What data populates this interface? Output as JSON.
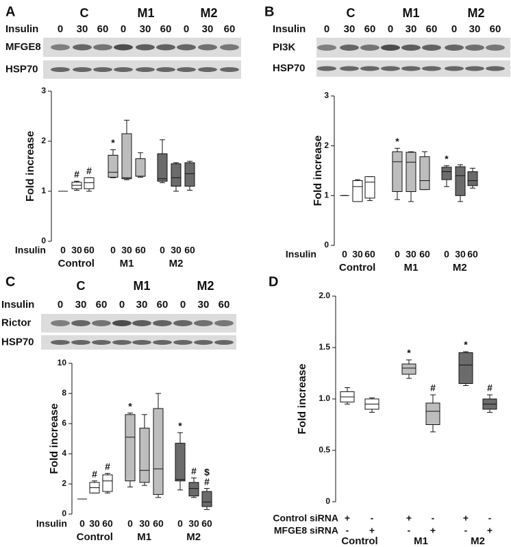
{
  "chart_data": [
    {
      "type": "box",
      "panel_label": "A",
      "ylabel": "Fold increase",
      "ylim": [
        0,
        3
      ],
      "yticks": [
        0,
        1,
        2,
        3
      ],
      "blot": {
        "groups": [
          "C",
          "M1",
          "M2"
        ],
        "dose_label": "Insulin",
        "doses": [
          "0",
          "30",
          "60",
          "0",
          "30",
          "60",
          "0",
          "30",
          "60"
        ],
        "bands": [
          "MFGE8",
          "HSP70"
        ]
      },
      "x_row_labels": [
        "Insulin"
      ],
      "series": [
        {
          "name": "Control",
          "color": "#ffffff",
          "x_labels": [
            [
              "0",
              "30",
              "60"
            ]
          ],
          "min": [
            1,
            1.02,
            1.0
          ],
          "q1": [
            1,
            1.05,
            1.05
          ],
          "median": [
            1,
            1.12,
            1.17
          ],
          "q3": [
            1,
            1.18,
            1.27
          ],
          "max": [
            1,
            1.2,
            1.27
          ],
          "annotations": [
            [],
            [
              "#"
            ],
            [
              "#"
            ]
          ]
        },
        {
          "name": "M1",
          "color": "#bdbdbd",
          "x_labels": [
            [
              "0",
              "30",
              "60"
            ]
          ],
          "min": [
            1.27,
            1.23,
            1.28
          ],
          "q1": [
            1.28,
            1.25,
            1.3
          ],
          "median": [
            1.38,
            1.27,
            1.3
          ],
          "q3": [
            1.72,
            2.15,
            1.65
          ],
          "max": [
            1.83,
            2.42,
            1.77
          ],
          "annotations": [
            [
              "*"
            ],
            [],
            []
          ]
        },
        {
          "name": "M2",
          "color": "#6b6b6b",
          "x_labels": [
            [
              "0",
              "30",
              "60"
            ]
          ],
          "min": [
            1.17,
            1.0,
            1.02
          ],
          "q1": [
            1.2,
            1.1,
            1.1
          ],
          "median": [
            1.25,
            1.27,
            1.35
          ],
          "q3": [
            1.75,
            1.55,
            1.57
          ],
          "max": [
            2.03,
            1.57,
            1.6
          ],
          "annotations": [
            [],
            [],
            []
          ]
        }
      ]
    },
    {
      "type": "box",
      "panel_label": "B",
      "ylabel": "Fold increase",
      "ylim": [
        0,
        3
      ],
      "yticks": [
        0,
        1,
        2,
        3
      ],
      "blot": {
        "groups": [
          "C",
          "M1",
          "M2"
        ],
        "dose_label": "Insulin",
        "doses": [
          "0",
          "30",
          "60",
          "0",
          "30",
          "60",
          "0",
          "30",
          "60"
        ],
        "bands": [
          "PI3K",
          "HSP70"
        ]
      },
      "x_row_labels": [
        "Insulin"
      ],
      "series": [
        {
          "name": "Control",
          "color": "#ffffff",
          "x_labels": [
            [
              "0",
              "30",
              "60"
            ]
          ],
          "min": [
            1,
            0.88,
            0.9
          ],
          "q1": [
            1,
            0.88,
            0.95
          ],
          "median": [
            1,
            1.18,
            1.27
          ],
          "q3": [
            1,
            1.3,
            1.38
          ],
          "max": [
            1,
            1.32,
            1.38
          ],
          "annotations": [
            [],
            [],
            []
          ]
        },
        {
          "name": "M1",
          "color": "#bdbdbd",
          "x_labels": [
            [
              "0",
              "30",
              "60"
            ]
          ],
          "min": [
            0.92,
            0.88,
            1.12
          ],
          "q1": [
            1.08,
            1.08,
            1.12
          ],
          "median": [
            1.68,
            1.67,
            1.3
          ],
          "q3": [
            1.88,
            1.87,
            1.78
          ],
          "max": [
            1.95,
            1.88,
            1.88
          ],
          "annotations": [
            [
              "*"
            ],
            [],
            []
          ]
        },
        {
          "name": "M2",
          "color": "#6b6b6b",
          "x_labels": [
            [
              "0",
              "30",
              "60"
            ]
          ],
          "min": [
            1.18,
            0.88,
            1.15
          ],
          "q1": [
            1.32,
            1.0,
            1.2
          ],
          "median": [
            1.48,
            1.4,
            1.3
          ],
          "q3": [
            1.57,
            1.58,
            1.48
          ],
          "max": [
            1.6,
            1.62,
            1.55
          ],
          "annotations": [
            [
              "*"
            ],
            [],
            []
          ]
        }
      ]
    },
    {
      "type": "box",
      "panel_label": "C",
      "ylabel": "Fold increase",
      "ylim": [
        0,
        10
      ],
      "yticks": [
        0,
        2,
        4,
        6,
        8,
        10
      ],
      "blot": {
        "groups": [
          "C",
          "M1",
          "M2"
        ],
        "dose_label": "Insulin",
        "doses": [
          "0",
          "30",
          "60",
          "0",
          "30",
          "60",
          "0",
          "30",
          "60"
        ],
        "bands": [
          "Rictor",
          "HSP70"
        ]
      },
      "x_row_labels": [
        "Insulin"
      ],
      "series": [
        {
          "name": "Control",
          "color": "#ffffff",
          "x_labels": [
            [
              "0",
              "30",
              "60"
            ]
          ],
          "min": [
            1,
            1.4,
            1.4
          ],
          "q1": [
            1,
            1.4,
            1.5
          ],
          "median": [
            1,
            1.75,
            2.2
          ],
          "q3": [
            1,
            2.1,
            2.6
          ],
          "max": [
            1,
            2.2,
            2.7
          ],
          "annotations": [
            [],
            [
              "#"
            ],
            [
              "#"
            ]
          ]
        },
        {
          "name": "M1",
          "color": "#bdbdbd",
          "x_labels": [
            [
              "0",
              "30",
              "60"
            ]
          ],
          "min": [
            1.8,
            1.9,
            1.1
          ],
          "q1": [
            2.2,
            2.1,
            1.3
          ],
          "median": [
            5.1,
            2.9,
            3.0
          ],
          "q3": [
            6.6,
            5.7,
            7.0
          ],
          "max": [
            6.7,
            6.6,
            8.0
          ],
          "annotations": [
            [
              "*"
            ],
            [],
            []
          ]
        },
        {
          "name": "M2",
          "color": "#6b6b6b",
          "x_labels": [
            [
              "0",
              "30",
              "60"
            ]
          ],
          "min": [
            1.6,
            1.1,
            0.3
          ],
          "q1": [
            2.2,
            1.2,
            0.5
          ],
          "median": [
            2.3,
            1.7,
            0.8
          ],
          "q3": [
            4.7,
            2.1,
            1.5
          ],
          "max": [
            5.4,
            2.4,
            1.7
          ],
          "annotations": [
            [
              "*"
            ],
            [
              "#"
            ],
            [
              "$",
              "#"
            ]
          ]
        }
      ]
    },
    {
      "type": "box",
      "panel_label": "D",
      "ylabel": "Fold increase",
      "ylim": [
        0,
        2
      ],
      "yticks": [
        0,
        0.5,
        {
          "value": 1,
          "label": "1.0"
        },
        1.5,
        {
          "value": 2,
          "label": "2.0"
        }
      ],
      "x_row_labels": [
        "Control siRNA",
        "MFGE8 siRNA"
      ],
      "series": [
        {
          "name": "Control",
          "color": "#ffffff",
          "x_labels": [
            [
              "+",
              "-"
            ],
            [
              "-",
              "+"
            ]
          ],
          "min": [
            0.95,
            0.87
          ],
          "q1": [
            0.97,
            0.9
          ],
          "median": [
            1.02,
            0.95
          ],
          "q3": [
            1.07,
            1.0
          ],
          "max": [
            1.11,
            1.01
          ],
          "annotations": [
            [],
            []
          ]
        },
        {
          "name": "M1",
          "color": "#bdbdbd",
          "x_labels": [
            [
              "+",
              "-"
            ],
            [
              "-",
              "+"
            ]
          ],
          "min": [
            1.2,
            0.68
          ],
          "q1": [
            1.24,
            0.75
          ],
          "median": [
            1.3,
            0.88
          ],
          "q3": [
            1.34,
            0.96
          ],
          "max": [
            1.38,
            1.04
          ],
          "annotations": [
            [
              "*"
            ],
            [
              "#"
            ]
          ]
        },
        {
          "name": "M2",
          "color": "#6b6b6b",
          "x_labels": [
            [
              "+",
              "-"
            ],
            [
              "-",
              "+"
            ]
          ],
          "min": [
            1.13,
            0.87
          ],
          "q1": [
            1.15,
            0.9
          ],
          "median": [
            1.33,
            0.95
          ],
          "q3": [
            1.45,
            1.0
          ],
          "max": [
            1.46,
            1.04
          ],
          "annotations": [
            [
              "*"
            ],
            [
              "#"
            ]
          ]
        }
      ]
    }
  ]
}
